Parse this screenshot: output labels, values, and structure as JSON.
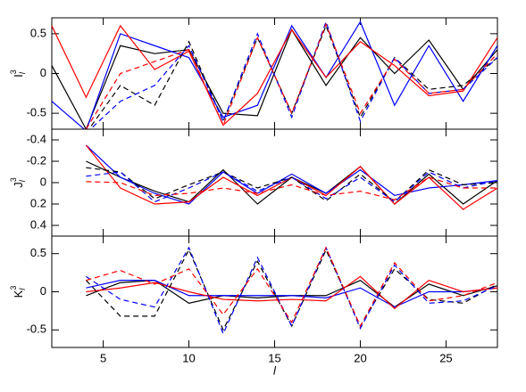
{
  "chart_data": [
    {
      "type": "line",
      "ylabel": {
        "base": "I",
        "sup": "3",
        "sub": "l"
      },
      "x": [
        2,
        4,
        6,
        8,
        10,
        12,
        14,
        16,
        18,
        20,
        22,
        24,
        26,
        28
      ],
      "xlim": [
        2,
        28
      ],
      "xticks": [
        5,
        10,
        15,
        20,
        25
      ],
      "ylim": [
        -0.7,
        0.7
      ],
      "yticks": [
        -0.5,
        0,
        0.5
      ],
      "series": [
        {
          "color": "#000000",
          "dashed": false,
          "values": [
            0.1,
            -0.7,
            0.35,
            0.25,
            0.3,
            -0.5,
            -0.53,
            0.55,
            -0.15,
            0.45,
            0.0,
            0.42,
            -0.2,
            0.3
          ]
        },
        {
          "color": "#0000ff",
          "dashed": false,
          "values": [
            -0.35,
            -0.72,
            0.5,
            0.35,
            0.2,
            -0.55,
            -0.4,
            0.6,
            -0.05,
            0.65,
            -0.4,
            0.35,
            -0.35,
            0.35
          ]
        },
        {
          "color": "#ff0000",
          "dashed": false,
          "values": [
            0.6,
            -0.3,
            0.6,
            0.05,
            0.28,
            -0.65,
            -0.25,
            0.55,
            -0.05,
            0.4,
            0.1,
            -0.28,
            -0.22,
            0.45
          ]
        },
        {
          "color": "#000000",
          "dashed": true,
          "values": [
            null,
            -0.75,
            -0.15,
            -0.4,
            0.4,
            -0.6,
            0.45,
            -0.5,
            0.6,
            -0.55,
            0.2,
            -0.2,
            -0.15,
            0.2
          ]
        },
        {
          "color": "#0000ff",
          "dashed": true,
          "values": [
            null,
            -0.75,
            -0.35,
            -0.15,
            0.35,
            -0.6,
            0.5,
            -0.55,
            0.65,
            -0.6,
            0.2,
            -0.25,
            -0.2,
            0.2
          ]
        },
        {
          "color": "#ff0000",
          "dashed": true,
          "values": [
            null,
            -0.7,
            0.0,
            0.15,
            0.3,
            -0.65,
            0.45,
            -0.5,
            0.62,
            -0.5,
            0.18,
            -0.25,
            -0.2,
            0.25
          ]
        }
      ]
    },
    {
      "type": "line",
      "ylabel": {
        "base": "J",
        "sup": "3",
        "sub": "l"
      },
      "x": [
        2,
        4,
        6,
        8,
        10,
        12,
        14,
        16,
        18,
        20,
        22,
        24,
        26,
        28
      ],
      "xlim": [
        2,
        28
      ],
      "xticks": [
        5,
        10,
        15,
        20,
        25
      ],
      "ylim": [
        -0.5,
        0.5
      ],
      "y_inverted": true,
      "yticks": [
        -0.4,
        -0.2,
        0,
        0.2,
        0.4
      ],
      "series": [
        {
          "color": "#000000",
          "dashed": false,
          "values": [
            null,
            -0.2,
            -0.05,
            0.08,
            0.18,
            -0.12,
            0.2,
            -0.05,
            0.1,
            -0.15,
            0.2,
            -0.08,
            0.2,
            -0.02
          ]
        },
        {
          "color": "#0000ff",
          "dashed": false,
          "values": [
            null,
            -0.35,
            -0.05,
            0.1,
            0.2,
            -0.1,
            0.1,
            -0.08,
            0.1,
            -0.12,
            0.12,
            0.05,
            0.02,
            -0.02
          ]
        },
        {
          "color": "#ff0000",
          "dashed": false,
          "values": [
            null,
            -0.35,
            0.05,
            0.2,
            0.18,
            -0.05,
            0.12,
            -0.05,
            0.12,
            -0.15,
            0.2,
            -0.05,
            0.25,
            0.05
          ]
        },
        {
          "color": "#000000",
          "dashed": true,
          "values": [
            null,
            -0.14,
            -0.1,
            0.15,
            0.02,
            -0.1,
            0.05,
            -0.05,
            0.17,
            -0.08,
            0.18,
            -0.12,
            0.02,
            0.0
          ]
        },
        {
          "color": "#0000ff",
          "dashed": true,
          "values": [
            null,
            -0.06,
            -0.1,
            0.18,
            0.05,
            -0.1,
            0.08,
            -0.05,
            0.15,
            -0.05,
            0.18,
            -0.1,
            0.05,
            -0.02
          ]
        },
        {
          "color": "#ff0000",
          "dashed": true,
          "values": [
            null,
            -0.01,
            0.0,
            0.12,
            0.1,
            0.05,
            0.1,
            0.02,
            0.12,
            0.08,
            0.16,
            -0.05,
            0.05,
            0.05
          ]
        }
      ]
    },
    {
      "type": "line",
      "ylabel": {
        "base": "K",
        "sup": "3",
        "sub": "l"
      },
      "xlabel": "l",
      "x": [
        2,
        4,
        6,
        8,
        10,
        12,
        14,
        16,
        18,
        20,
        22,
        24,
        26,
        28
      ],
      "xlim": [
        2,
        28
      ],
      "xticks": [
        5,
        10,
        15,
        20,
        25
      ],
      "ylim": [
        -0.73,
        0.73
      ],
      "yticks": [
        -0.5,
        0,
        0.5
      ],
      "series": [
        {
          "color": "#000000",
          "dashed": false,
          "values": [
            null,
            -0.05,
            0.12,
            0.15,
            -0.15,
            -0.05,
            -0.08,
            -0.05,
            -0.05,
            0.15,
            -0.2,
            0.1,
            -0.05,
            0.08
          ]
        },
        {
          "color": "#0000ff",
          "dashed": false,
          "values": [
            null,
            0.05,
            0.15,
            0.15,
            -0.05,
            -0.05,
            -0.05,
            -0.05,
            -0.08,
            0.05,
            -0.2,
            0.0,
            0.0,
            0.05
          ]
        },
        {
          "color": "#ff0000",
          "dashed": false,
          "values": [
            null,
            0.0,
            0.05,
            0.12,
            0.0,
            -0.1,
            -0.12,
            -0.1,
            -0.12,
            0.2,
            -0.22,
            0.15,
            0.0,
            0.05
          ]
        },
        {
          "color": "#000000",
          "dashed": true,
          "values": [
            null,
            0.15,
            -0.32,
            -0.32,
            0.55,
            -0.5,
            0.4,
            -0.45,
            0.55,
            -0.45,
            0.3,
            -0.1,
            -0.15,
            0.1
          ]
        },
        {
          "color": "#0000ff",
          "dashed": true,
          "values": [
            null,
            0.2,
            -0.1,
            -0.2,
            0.58,
            -0.55,
            0.45,
            -0.45,
            0.58,
            -0.48,
            0.35,
            -0.15,
            -0.12,
            0.08
          ]
        },
        {
          "color": "#ff0000",
          "dashed": true,
          "values": [
            null,
            0.15,
            0.28,
            0.1,
            0.3,
            -0.3,
            0.3,
            -0.4,
            0.58,
            -0.45,
            0.38,
            -0.12,
            -0.05,
            0.12
          ]
        }
      ]
    }
  ]
}
